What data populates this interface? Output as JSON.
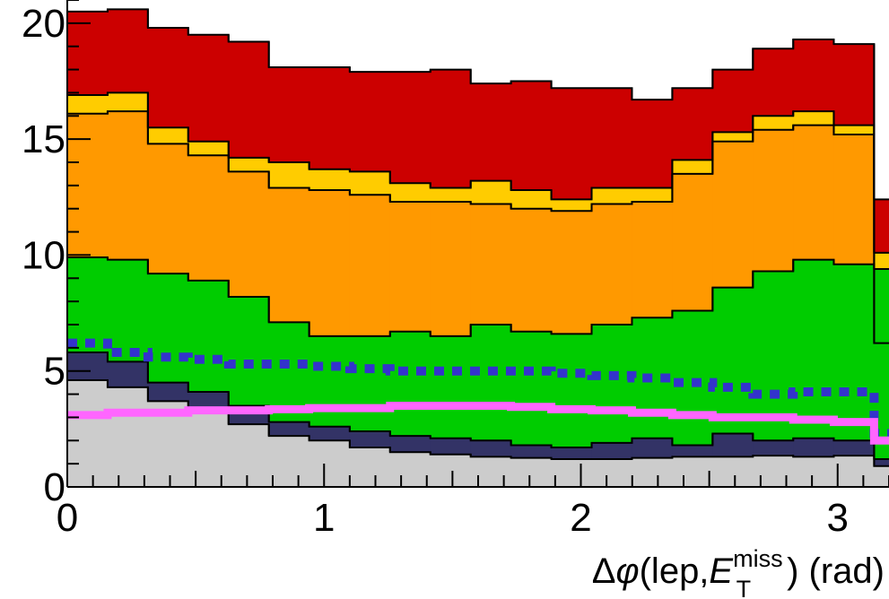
{
  "chart_data": {
    "type": "area",
    "stacked": true,
    "xlabel": {
      "prefix": "Δ",
      "phi": "φ",
      "open": "(lep,",
      "E": "E",
      "sup": "miss",
      "sub": "T",
      "close": ") (rad)"
    },
    "ylabel": "",
    "xlim": [
      0,
      3.2
    ],
    "ylim": [
      0,
      21
    ],
    "x_ticks": [
      0,
      1,
      2,
      3
    ],
    "y_ticks": [
      0,
      5,
      10,
      15,
      20
    ],
    "bin_edges": [
      0,
      0.157,
      0.314,
      0.471,
      0.628,
      0.785,
      0.942,
      1.1,
      1.257,
      1.414,
      1.571,
      1.728,
      1.885,
      2.042,
      2.199,
      2.356,
      2.513,
      2.67,
      2.827,
      2.985,
      3.142,
      3.2
    ],
    "stack_fill_colors": [
      "#cccccc",
      "#333366",
      "#00cc00",
      "#ff9900",
      "#ffcc00",
      "#cc0000"
    ],
    "stack_cumulative": [
      [
        4.6,
        4.3,
        3.7,
        3.2,
        2.7,
        2.2,
        2.0,
        1.7,
        1.5,
        1.4,
        1.3,
        1.25,
        1.2,
        1.2,
        1.25,
        1.3,
        1.3,
        1.35,
        1.3,
        1.35,
        0.9
      ],
      [
        5.8,
        5.4,
        4.5,
        4.1,
        3.5,
        2.8,
        2.6,
        2.4,
        2.2,
        2.1,
        2.0,
        1.8,
        1.7,
        1.9,
        2.1,
        1.8,
        2.3,
        2.0,
        2.1,
        2.0,
        1.2
      ],
      [
        9.9,
        9.8,
        9.2,
        8.9,
        8.2,
        7.1,
        6.5,
        6.5,
        6.7,
        6.5,
        7.0,
        6.7,
        6.6,
        7.0,
        7.3,
        7.6,
        8.6,
        9.3,
        9.8,
        9.6,
        9.4
      ],
      [
        16.1,
        16.2,
        14.8,
        14.3,
        13.6,
        12.9,
        12.8,
        12.6,
        12.3,
        12.3,
        12.2,
        12.0,
        11.9,
        12.2,
        12.3,
        13.5,
        14.9,
        15.4,
        15.6,
        15.2,
        6.2
      ],
      [
        16.9,
        17.0,
        15.5,
        14.9,
        14.2,
        14.0,
        13.7,
        13.6,
        13.1,
        12.9,
        13.2,
        12.8,
        12.4,
        12.9,
        12.9,
        14.1,
        15.3,
        16.0,
        16.2,
        15.6,
        10.1
      ],
      [
        20.5,
        20.6,
        19.8,
        19.5,
        19.2,
        18.1,
        18.1,
        17.9,
        17.9,
        18.0,
        17.4,
        17.5,
        17.2,
        17.2,
        16.7,
        17.2,
        18.0,
        18.9,
        19.3,
        19.1,
        12.4
      ]
    ],
    "lines": [
      {
        "style": "dotted",
        "color": "#3333cc",
        "values": [
          6.2,
          5.8,
          5.6,
          5.5,
          5.3,
          5.3,
          5.2,
          5.1,
          5.0,
          5.0,
          5.0,
          5.0,
          4.9,
          4.8,
          4.7,
          4.5,
          4.3,
          4.0,
          4.1,
          4.1,
          2.3
        ]
      },
      {
        "style": "solid",
        "color": "#ff66ff",
        "values": [
          3.1,
          3.2,
          3.2,
          3.3,
          3.3,
          3.35,
          3.4,
          3.4,
          3.5,
          3.5,
          3.5,
          3.45,
          3.35,
          3.3,
          3.2,
          3.1,
          3.0,
          3.0,
          2.9,
          2.8,
          2.0
        ]
      }
    ],
    "legend": "none",
    "grid": false
  }
}
